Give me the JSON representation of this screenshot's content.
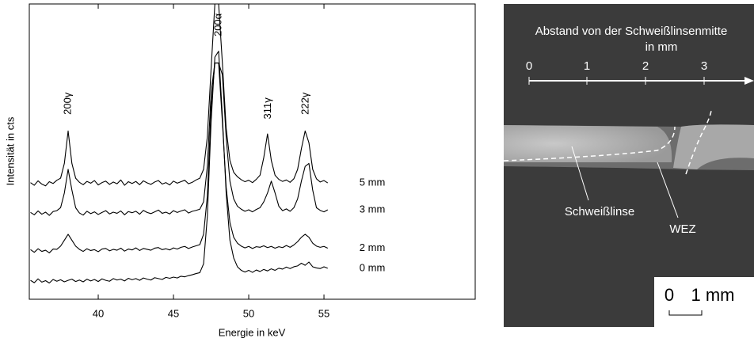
{
  "chart_data": {
    "type": "line",
    "xlabel": "Energie in keV",
    "ylabel": "Intensität in cts",
    "xlim": [
      35.42,
      65.05
    ],
    "xticks": [
      40,
      45,
      50,
      55
    ],
    "ylim": [
      0,
      100
    ],
    "x": [
      35.5,
      35.75,
      36,
      36.25,
      36.5,
      36.75,
      37,
      37.25,
      37.5,
      37.75,
      38,
      38.25,
      38.5,
      38.75,
      39,
      39.25,
      39.5,
      39.75,
      40,
      40.25,
      40.5,
      40.75,
      41,
      41.25,
      41.5,
      41.75,
      42,
      42.25,
      42.5,
      42.75,
      43,
      43.25,
      43.5,
      43.75,
      44,
      44.25,
      44.5,
      44.75,
      45,
      45.25,
      45.5,
      45.75,
      46,
      46.25,
      46.5,
      46.75,
      47,
      47.25,
      47.5,
      47.75,
      48,
      48.25,
      48.5,
      48.75,
      49,
      49.25,
      49.5,
      49.75,
      50,
      50.25,
      50.5,
      50.75,
      51,
      51.25,
      51.5,
      51.75,
      52,
      52.25,
      52.5,
      52.75,
      53,
      53.25,
      53.5,
      53.75,
      54,
      54.25,
      54.5,
      54.75,
      55,
      55.25
    ],
    "series": [
      {
        "name": "5 mm",
        "color": "#000000",
        "values": [
          39.5,
          38.6,
          40.1,
          39.0,
          38.4,
          39.8,
          39.2,
          40.3,
          41,
          46,
          57,
          46,
          41,
          39.6,
          38.8,
          39.9,
          39.3,
          40.2,
          38.7,
          39.5,
          40.0,
          38.9,
          39.7,
          39.1,
          40.4,
          38.6,
          39.8,
          39.2,
          39.9,
          38.8,
          40.1,
          39.4,
          38.9,
          39.7,
          40.2,
          39.0,
          39.5,
          38.7,
          40.0,
          39.3,
          39.8,
          40.3,
          39.1,
          39.6,
          40.4,
          41,
          44,
          55,
          78,
          100,
          100,
          80,
          58,
          47,
          43,
          41.5,
          40.5,
          39.8,
          40.3,
          39.5,
          40.6,
          42,
          48,
          56,
          47,
          42,
          40.6,
          39.9,
          40.4,
          39.6,
          40.8,
          44,
          51,
          57,
          53,
          44,
          40.8,
          39.7,
          40.2,
          39.4
        ]
      },
      {
        "name": "3 mm",
        "color": "#000000",
        "values": [
          29.4,
          28.6,
          29.9,
          28.8,
          29.5,
          28.4,
          29.7,
          30.0,
          31,
          36,
          44,
          37,
          31,
          29.2,
          28.5,
          29.8,
          29.0,
          29.6,
          28.7,
          29.4,
          30.0,
          28.9,
          29.5,
          29.1,
          29.9,
          28.6,
          29.7,
          29.3,
          29.8,
          28.8,
          30.1,
          29.4,
          29.0,
          29.6,
          30.2,
          29.1,
          29.5,
          28.9,
          30.0,
          29.4,
          29.9,
          30.3,
          29.2,
          29.8,
          30.1,
          30.5,
          33,
          45,
          70,
          80,
          80,
          76,
          55,
          40,
          34,
          31.5,
          30.5,
          29.8,
          30.3,
          29.6,
          30.4,
          31,
          33,
          36,
          40,
          36,
          31.5,
          30.0,
          30.6,
          29.8,
          31,
          34,
          40,
          45,
          46,
          37,
          31,
          30.1,
          29.6,
          30.3
        ]
      },
      {
        "name": "2 mm",
        "color": "#000000",
        "values": [
          16.8,
          15.9,
          17.1,
          16.2,
          16.6,
          15.7,
          17.0,
          16.9,
          18,
          20,
          22,
          20,
          18,
          16.9,
          16.2,
          17.1,
          16.5,
          16.8,
          16.1,
          17.0,
          17.2,
          16.4,
          16.9,
          16.6,
          17.3,
          16.3,
          17.0,
          16.7,
          17.4,
          16.5,
          17.2,
          16.9,
          16.6,
          17.3,
          17.5,
          16.8,
          17.1,
          16.7,
          17.4,
          17.0,
          17.6,
          17.9,
          17.2,
          17.7,
          18.1,
          18.5,
          22,
          35,
          65,
          80,
          80,
          60,
          38,
          26,
          21,
          19,
          18,
          17.4,
          17.9,
          17.2,
          17.8,
          17.6,
          18.1,
          17.5,
          17.9,
          17.3,
          17.8,
          17.5,
          18.2,
          17.6,
          18.4,
          19.5,
          21,
          22,
          21,
          19,
          18,
          17.6,
          17.9,
          17.3
        ]
      },
      {
        "name": "0 mm",
        "color": "#000000",
        "values": [
          6.4,
          5.6,
          6.9,
          5.8,
          6.3,
          5.5,
          6.7,
          6.1,
          6.6,
          5.9,
          6.4,
          6.8,
          6.0,
          6.5,
          5.9,
          6.8,
          6.2,
          6.7,
          6.0,
          6.9,
          6.4,
          6.1,
          7.0,
          6.5,
          6.8,
          6.2,
          7.1,
          6.6,
          7.0,
          6.4,
          7.2,
          6.8,
          6.5,
          7.3,
          7.0,
          6.7,
          7.4,
          7.1,
          7.5,
          7.2,
          7.8,
          7.6,
          8.0,
          8.3,
          8.7,
          9,
          12,
          28,
          60,
          82,
          84,
          62,
          36,
          20,
          14,
          11,
          9.8,
          9.2,
          9.8,
          9.1,
          9.9,
          9.4,
          10.1,
          9.6,
          10.3,
          9.8,
          10.5,
          10.2,
          10.9,
          10.4,
          11.0,
          11.3,
          12.2,
          11.5,
          12.6,
          11.0,
          10.6,
          10.4,
          11.0,
          10.5
        ]
      }
    ],
    "annotations": [
      {
        "text": "200γ",
        "x": 38.0,
        "y": 62.5
      },
      {
        "text": "200α",
        "x": 48.0,
        "y": 89
      },
      {
        "text": "311γ",
        "x": 51.3,
        "y": 61
      },
      {
        "text": "222γ",
        "x": 53.8,
        "y": 62.5
      }
    ]
  },
  "micrograph": {
    "ruler_title": [
      "Abstand von der  Schweißlinsenmitte",
      "in mm"
    ],
    "ruler_ticks": [
      "0",
      "1",
      "2",
      "3"
    ],
    "labels": [
      "Schweißlinse",
      "WEZ"
    ],
    "scale_bar": [
      "0",
      "1 mm"
    ]
  }
}
